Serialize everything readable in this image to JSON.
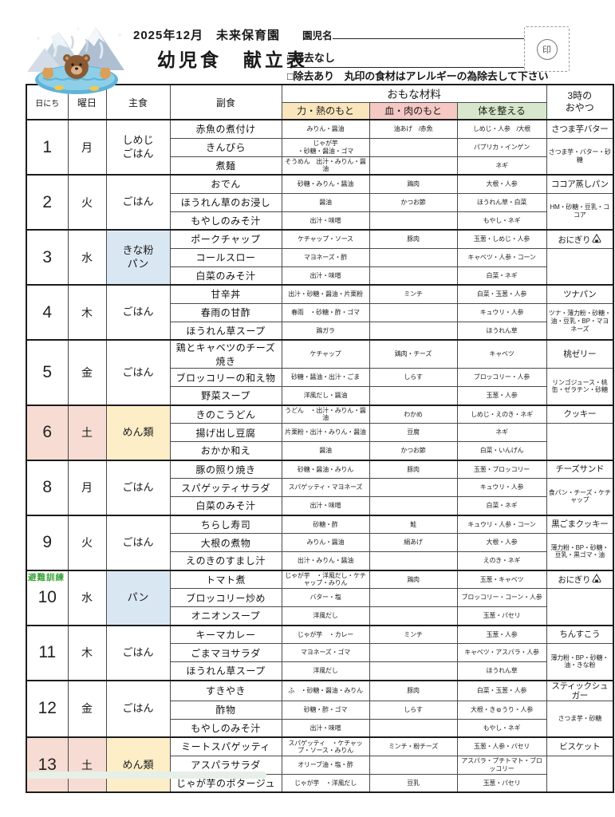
{
  "header": {
    "school_line": "2025年12月　未来保育園",
    "child_name_label": "園児名",
    "title": "幼児食　献立表",
    "checkbox_none": "□除去なし",
    "checkbox_remove": "□除去あり　丸印の食材はアレルギーの為除去して下さい",
    "stamp_label": "印"
  },
  "columns": {
    "date": "日にち",
    "weekday": "曜日",
    "staple": "主食",
    "side_dish": "副食",
    "main_ingredients": "おもな材料",
    "energy": "力・熱のもと",
    "blood_meat": "血・肉のもと",
    "body": "体を整える",
    "snack": "3時の\nおやつ"
  },
  "colors": {
    "energy_bg": "#fae6bd",
    "blood_bg": "#f5c8c4",
    "body_bg": "#d6e7cb",
    "bread_bg": "#d9e7f3",
    "noodle_bg": "#fdeec8",
    "saturday_bg": "#f6dcd2",
    "drill_green": "#3aa43a"
  },
  "days": [
    {
      "date": "1",
      "weekday": "月",
      "staple": "しめじ\nごはん",
      "staple_bg": "",
      "saturday": false,
      "note": "",
      "dishes": [
        {
          "name": "赤魚の煮付け",
          "energy": "みりん・醤油",
          "protein": "油あげ　/赤魚",
          "body": "しめじ・人参　/大根"
        },
        {
          "name": "きんぴら",
          "energy": "じゃが芋\n・砂糖・醤油・ゴマ",
          "protein": "",
          "body": "パプリカ・インゲン"
        },
        {
          "name": "煮麺",
          "energy": "そうめん　出汁・みりん・醤油",
          "protein": "",
          "body": "ネギ"
        }
      ],
      "snack": {
        "name": "さつま芋バター",
        "icon": "",
        "ingredients": "さつま芋・バター・砂糖"
      }
    },
    {
      "date": "2",
      "weekday": "火",
      "staple": "ごはん",
      "staple_bg": "",
      "saturday": false,
      "note": "",
      "dishes": [
        {
          "name": "おでん",
          "energy": "砂糖・みりん・醤油",
          "protein": "鶏肉",
          "body": "大根・人参"
        },
        {
          "name": "ほうれん草のお浸し",
          "energy": "醤油",
          "protein": "かつお節",
          "body": "ほうれん草・白菜"
        },
        {
          "name": "もやしのみそ汁",
          "energy": "出汁・味噌",
          "protein": "",
          "body": "もやし・ネギ"
        }
      ],
      "snack": {
        "name": "ココア蒸しパン",
        "icon": "",
        "ingredients": "HM・砂糖・豆乳・ココア"
      }
    },
    {
      "date": "3",
      "weekday": "水",
      "staple": "きな粉\nパン",
      "staple_bg": "bg-blue",
      "saturday": false,
      "note": "",
      "dishes": [
        {
          "name": "ポークチャップ",
          "energy": "ケチャップ・ソース",
          "protein": "豚肉",
          "body": "玉葱・しめじ・人参"
        },
        {
          "name": "コールスロー",
          "energy": "マヨネーズ・酢",
          "protein": "",
          "body": "キャベツ・人参・コーン"
        },
        {
          "name": "白菜のみそ汁",
          "energy": "出汁・味噌",
          "protein": "",
          "body": "白菜・ネギ"
        }
      ],
      "snack": {
        "name": "おにぎり",
        "icon": "onigiri",
        "ingredients": ""
      }
    },
    {
      "date": "4",
      "weekday": "木",
      "staple": "ごはん",
      "staple_bg": "",
      "saturday": false,
      "note": "",
      "dishes": [
        {
          "name": "甘辛丼",
          "energy": "出汁・砂糖・醤油・片栗粉",
          "protein": "ミンチ",
          "body": "白菜・玉葱・人参"
        },
        {
          "name": "春雨の甘酢",
          "energy": "春雨　・砂糖・酢・ゴマ",
          "protein": "",
          "body": "キュウリ・人参"
        },
        {
          "name": "ほうれん草スープ",
          "energy": "鶏ガラ",
          "protein": "",
          "body": "ほうれん草"
        }
      ],
      "snack": {
        "name": "ツナパン",
        "icon": "",
        "ingredients": "ツナ・薄力粉・砂糖・油・豆乳・BP・マヨネーズ"
      }
    },
    {
      "date": "5",
      "weekday": "金",
      "staple": "ごはん",
      "staple_bg": "",
      "saturday": false,
      "note": "",
      "dishes": [
        {
          "name": "鶏とキャベツのチーズ焼き",
          "energy": "ケチャップ",
          "protein": "鶏肉・チーズ",
          "body": "キャベツ"
        },
        {
          "name": "ブロッコリーの和え物",
          "energy": "砂糖・醤油・出汁・ごま",
          "protein": "しらす",
          "body": "ブロッコリー・人参"
        },
        {
          "name": "野菜スープ",
          "energy": "洋風だし・醤油",
          "protein": "",
          "body": "玉葱・人参"
        }
      ],
      "snack": {
        "name": "桃ゼリー",
        "icon": "",
        "ingredients": "リンゴジュース・桃缶・ゼラチン・砂糖"
      }
    },
    {
      "date": "6",
      "weekday": "土",
      "staple": "めん類",
      "staple_bg": "bg-cream",
      "saturday": true,
      "note": "",
      "dishes": [
        {
          "name": "きのこうどん",
          "energy": "うどん　・出汁・みりん・醤油",
          "protein": "わかめ",
          "body": "しめじ・えのき・ネギ"
        },
        {
          "name": "揚げ出し豆腐",
          "energy": "片栗粉・出汁・みりん・醤油",
          "protein": "豆腐",
          "body": "ネギ"
        },
        {
          "name": "おかか和え",
          "energy": "醤油",
          "protein": "かつお節",
          "body": "白菜・いんげん"
        }
      ],
      "snack": {
        "name": "クッキー",
        "icon": "",
        "ingredients": ""
      }
    },
    {
      "date": "8",
      "weekday": "月",
      "staple": "ごはん",
      "staple_bg": "",
      "saturday": false,
      "note": "",
      "dishes": [
        {
          "name": "豚の照り焼き",
          "energy": "砂糖・醤油・みりん",
          "protein": "豚肉",
          "body": "玉葱・ブロッコリー"
        },
        {
          "name": "スパゲッティサラダ",
          "energy": "スパゲッティ・マヨネーズ",
          "protein": "",
          "body": "キュウリ・人参"
        },
        {
          "name": "白菜のみそ汁",
          "energy": "出汁・味噌",
          "protein": "",
          "body": "白菜・ネギ"
        }
      ],
      "snack": {
        "name": "チーズサンド",
        "icon": "",
        "ingredients": "食パン・チーズ・ケチャップ"
      }
    },
    {
      "date": "9",
      "weekday": "火",
      "staple": "ごはん",
      "staple_bg": "",
      "saturday": false,
      "note": "",
      "dishes": [
        {
          "name": "ちらし寿司",
          "energy": "砂糖・酢",
          "protein": "鮭",
          "body": "キュウリ・人参・コーン"
        },
        {
          "name": "大根の煮物",
          "energy": "みりん・醤油",
          "protein": "絹あげ",
          "body": "大根・人参"
        },
        {
          "name": "えのきのすまし汁",
          "energy": "出汁・みりん・醤油",
          "protein": "",
          "body": "えのき・ネギ"
        }
      ],
      "snack": {
        "name": "黒ごまクッキー",
        "icon": "",
        "ingredients": "薄力粉・BP・砂糖・豆乳・黒ゴマ・油"
      }
    },
    {
      "date": "10",
      "weekday": "水",
      "staple": "パン",
      "staple_bg": "bg-blue",
      "saturday": false,
      "note": "避難訓練",
      "dishes": [
        {
          "name": "トマト煮",
          "energy": "じゃが芋　・洋風だし・ケチャップ・みりん",
          "protein": "鶏肉",
          "body": "玉葱・キャベツ"
        },
        {
          "name": "ブロッコリー炒め",
          "energy": "バター・塩",
          "protein": "",
          "body": "ブロッコリー・コーン・人参"
        },
        {
          "name": "オニオンスープ",
          "energy": "洋風だし",
          "protein": "",
          "body": "玉葱・パセリ"
        }
      ],
      "snack": {
        "name": "おにぎり",
        "icon": "onigiri",
        "ingredients": ""
      }
    },
    {
      "date": "11",
      "weekday": "木",
      "staple": "ごはん",
      "staple_bg": "",
      "saturday": false,
      "note": "",
      "dishes": [
        {
          "name": "キーマカレー",
          "energy": "じゃが芋　・カレー",
          "protein": "ミンチ",
          "body": "玉葱・人参"
        },
        {
          "name": "ごまマヨサラダ",
          "energy": "マヨネーズ・ゴマ",
          "protein": "",
          "body": "キャベツ・アスパラ・人参"
        },
        {
          "name": "ほうれん草スープ",
          "energy": "洋風だし",
          "protein": "",
          "body": "ほうれん草"
        }
      ],
      "snack": {
        "name": "ちんすこう",
        "icon": "",
        "ingredients": "薄力粉・BP・砂糖・油・きな粉"
      }
    },
    {
      "date": "12",
      "weekday": "金",
      "staple": "ごはん",
      "staple_bg": "",
      "saturday": false,
      "note": "",
      "dishes": [
        {
          "name": "すきやき",
          "energy": "ふ　・砂糖・醤油・みりん",
          "protein": "豚肉",
          "body": "白菜・玉葱・人参"
        },
        {
          "name": "酢物",
          "energy": "砂糖・酢・ゴマ",
          "protein": "しらす",
          "body": "大根・きゅうり・人参"
        },
        {
          "name": "もやしのみそ汁",
          "energy": "出汁・味噌",
          "protein": "",
          "body": "もやし・ネギ"
        }
      ],
      "snack": {
        "name": "スティックシュガー",
        "icon": "",
        "ingredients": "さつま芋・砂糖"
      }
    },
    {
      "date": "13",
      "weekday": "土",
      "staple": "めん類",
      "staple_bg": "bg-cream",
      "saturday": true,
      "note": "",
      "dishes": [
        {
          "name": "ミートスパゲッティ",
          "energy": "スパゲッティ　・ケチャップ・ソース・みりん",
          "protein": "ミンチ・粉チーズ",
          "body": "玉葱・人参・パセリ"
        },
        {
          "name": "アスパラサラダ",
          "energy": "オリーブ油・塩・酢",
          "protein": "",
          "body": "アスパラ・プチトマト・ブロッコリー"
        },
        {
          "name": "じゃが芋のポタージュ",
          "energy": "じゃが芋　・洋風だし",
          "protein": "豆乳",
          "body": "玉葱・パセリ"
        }
      ],
      "snack": {
        "name": "ビスケット",
        "icon": "",
        "ingredients": ""
      }
    }
  ]
}
